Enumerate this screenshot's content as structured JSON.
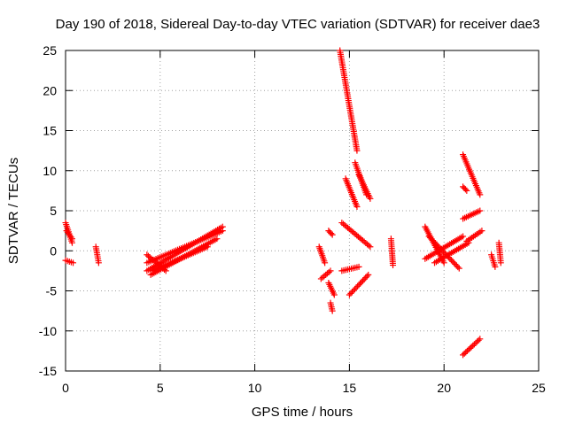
{
  "chart_data": {
    "type": "scatter",
    "title": "Day 190 of 2018, Sidereal Day-to-day VTEC variation (SDTVAR) for receiver dae3",
    "xlabel": "GPS time / hours",
    "ylabel": "SDTVAR / TECUs",
    "xlim": [
      0,
      25
    ],
    "ylim": [
      -15,
      25
    ],
    "xticks": [
      "0",
      "5",
      "10",
      "15",
      "20",
      "25"
    ],
    "yticks": [
      "25",
      "20",
      "15",
      "10",
      "5",
      "0",
      "-5",
      "-10",
      "-15"
    ],
    "grid": true,
    "marker": "plus",
    "color": "#ff0000",
    "segments": [
      {
        "x": [
          0.0,
          0.35
        ],
        "y": [
          3.5,
          1.0
        ]
      },
      {
        "x": [
          0.05,
          0.35
        ],
        "y": [
          2.5,
          1.5
        ]
      },
      {
        "x": [
          0.0,
          0.4
        ],
        "y": [
          -1.2,
          -1.5
        ]
      },
      {
        "x": [
          1.6,
          1.75
        ],
        "y": [
          0.5,
          -1.5
        ]
      },
      {
        "x": [
          4.3,
          8.3
        ],
        "y": [
          -2.5,
          3.0
        ]
      },
      {
        "x": [
          4.3,
          8.3
        ],
        "y": [
          -1.5,
          2.5
        ]
      },
      {
        "x": [
          4.5,
          8.0
        ],
        "y": [
          -3.0,
          1.5
        ]
      },
      {
        "x": [
          4.3,
          5.3
        ],
        "y": [
          -0.5,
          -2.5
        ]
      },
      {
        "x": [
          4.6,
          7.5
        ],
        "y": [
          -2.5,
          0.5
        ]
      },
      {
        "x": [
          14.5,
          15.4
        ],
        "y": [
          25.0,
          12.5
        ]
      },
      {
        "x": [
          15.3,
          15.9
        ],
        "y": [
          11.0,
          7.0
        ]
      },
      {
        "x": [
          15.5,
          16.1
        ],
        "y": [
          9.5,
          6.5
        ]
      },
      {
        "x": [
          14.8,
          15.4
        ],
        "y": [
          9.0,
          5.5
        ]
      },
      {
        "x": [
          14.6,
          16.1
        ],
        "y": [
          3.5,
          0.5
        ]
      },
      {
        "x": [
          14.6,
          15.5
        ],
        "y": [
          -2.5,
          -2.0
        ]
      },
      {
        "x": [
          15.0,
          16.0
        ],
        "y": [
          -5.5,
          -3.0
        ]
      },
      {
        "x": [
          13.4,
          13.7
        ],
        "y": [
          0.5,
          -1.5
        ]
      },
      {
        "x": [
          13.5,
          14.0
        ],
        "y": [
          -3.5,
          -2.5
        ]
      },
      {
        "x": [
          13.9,
          14.2
        ],
        "y": [
          -4.0,
          -5.5
        ]
      },
      {
        "x": [
          14.0,
          14.1
        ],
        "y": [
          -6.5,
          -7.5
        ]
      },
      {
        "x": [
          13.9,
          14.1
        ],
        "y": [
          2.5,
          2.0
        ]
      },
      {
        "x": [
          17.2,
          17.3
        ],
        "y": [
          1.5,
          -1.8
        ]
      },
      {
        "x": [
          19.0,
          21.0
        ],
        "y": [
          -1.0,
          1.8
        ]
      },
      {
        "x": [
          19.2,
          20.8
        ],
        "y": [
          1.8,
          -2.2
        ]
      },
      {
        "x": [
          19.5,
          21.3
        ],
        "y": [
          -1.5,
          1.0
        ]
      },
      {
        "x": [
          19.0,
          20.0
        ],
        "y": [
          3.0,
          -1.5
        ]
      },
      {
        "x": [
          21.0,
          21.9
        ],
        "y": [
          12.0,
          7.0
        ]
      },
      {
        "x": [
          21.0,
          21.2
        ],
        "y": [
          8.0,
          7.5
        ]
      },
      {
        "x": [
          21.0,
          21.9
        ],
        "y": [
          4.0,
          5.0
        ]
      },
      {
        "x": [
          21.2,
          22.0
        ],
        "y": [
          1.2,
          2.5
        ]
      },
      {
        "x": [
          21.0,
          21.9
        ],
        "y": [
          -13.0,
          -11.0
        ]
      },
      {
        "x": [
          22.5,
          22.7
        ],
        "y": [
          -0.5,
          -2.0
        ]
      },
      {
        "x": [
          22.9,
          23.0
        ],
        "y": [
          1.0,
          -1.5
        ]
      }
    ]
  }
}
